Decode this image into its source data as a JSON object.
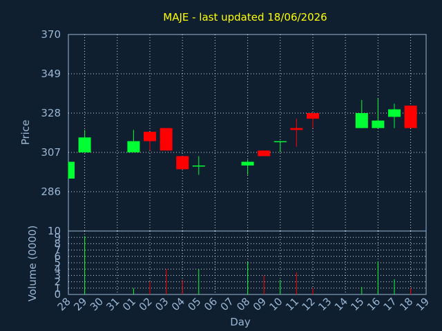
{
  "chart_data": {
    "type": "candlestick",
    "title": "MAJE - last updated 18/06/2026",
    "ylabel": "Price",
    "y2label": "Volume (0000)",
    "xlabel": "Day",
    "ylim": [
      265,
      370
    ],
    "yticks": [
      286,
      307,
      328,
      349,
      370
    ],
    "vol_ylim": [
      0,
      10
    ],
    "vol_yticks": [
      0,
      1,
      2,
      3,
      4,
      5,
      6,
      7,
      8,
      9,
      10
    ],
    "x_tick_labels": [
      "28",
      "29",
      "30",
      "31",
      "01",
      "02",
      "03",
      "04",
      "05",
      "06",
      "07",
      "08",
      "09",
      "10",
      "11",
      "12",
      "13",
      "14",
      "15",
      "16",
      "17",
      "18",
      "19"
    ],
    "up_color": "#00ff33",
    "down_color": "#ff0000",
    "grid": true,
    "candles": [
      {
        "day": "28",
        "open": 293,
        "high": 302,
        "low": 293,
        "close": 302
      },
      {
        "day": "29",
        "open": 307,
        "high": 319,
        "low": 307,
        "close": 315
      },
      {
        "day": "01",
        "open": 307,
        "high": 319,
        "low": 307,
        "close": 313
      },
      {
        "day": "02",
        "open": 318,
        "high": 318,
        "low": 308,
        "close": 313
      },
      {
        "day": "03",
        "open": 320,
        "high": 320,
        "low": 308,
        "close": 308
      },
      {
        "day": "04",
        "open": 305,
        "high": 305,
        "low": 298,
        "close": 298
      },
      {
        "day": "05",
        "open": 300,
        "high": 305,
        "low": 295,
        "close": 300
      },
      {
        "day": "08",
        "open": 300,
        "high": 303,
        "low": 295,
        "close": 302
      },
      {
        "day": "09",
        "open": 308,
        "high": 308,
        "low": 305,
        "close": 305
      },
      {
        "day": "10",
        "open": 313,
        "high": 313,
        "low": 307,
        "close": 313
      },
      {
        "day": "11",
        "open": 320,
        "high": 325,
        "low": 310,
        "close": 319
      },
      {
        "day": "12",
        "open": 328,
        "high": 328,
        "low": 320,
        "close": 325
      },
      {
        "day": "15",
        "open": 320,
        "high": 335,
        "low": 320,
        "close": 328
      },
      {
        "day": "16",
        "open": 320,
        "high": 336,
        "low": 320,
        "close": 324
      },
      {
        "day": "17",
        "open": 326,
        "high": 333,
        "low": 320,
        "close": 330
      },
      {
        "day": "18",
        "open": 332,
        "high": 332,
        "low": 320,
        "close": 320
      }
    ],
    "volume": [
      {
        "day": "29",
        "value": 9.2,
        "dir": "up"
      },
      {
        "day": "01",
        "value": 1.0,
        "dir": "up"
      },
      {
        "day": "02",
        "value": 2.0,
        "dir": "down"
      },
      {
        "day": "03",
        "value": 4.0,
        "dir": "down"
      },
      {
        "day": "04",
        "value": 2.3,
        "dir": "down"
      },
      {
        "day": "05",
        "value": 4.0,
        "dir": "up"
      },
      {
        "day": "08",
        "value": 5.1,
        "dir": "up"
      },
      {
        "day": "09",
        "value": 3.0,
        "dir": "down"
      },
      {
        "day": "10",
        "value": 2.3,
        "dir": "up"
      },
      {
        "day": "11",
        "value": 3.5,
        "dir": "down"
      },
      {
        "day": "12",
        "value": 1.0,
        "dir": "down"
      },
      {
        "day": "15",
        "value": 1.2,
        "dir": "up"
      },
      {
        "day": "16",
        "value": 5.2,
        "dir": "up"
      },
      {
        "day": "17",
        "value": 2.4,
        "dir": "up"
      },
      {
        "day": "18",
        "value": 1.0,
        "dir": "down"
      }
    ]
  }
}
